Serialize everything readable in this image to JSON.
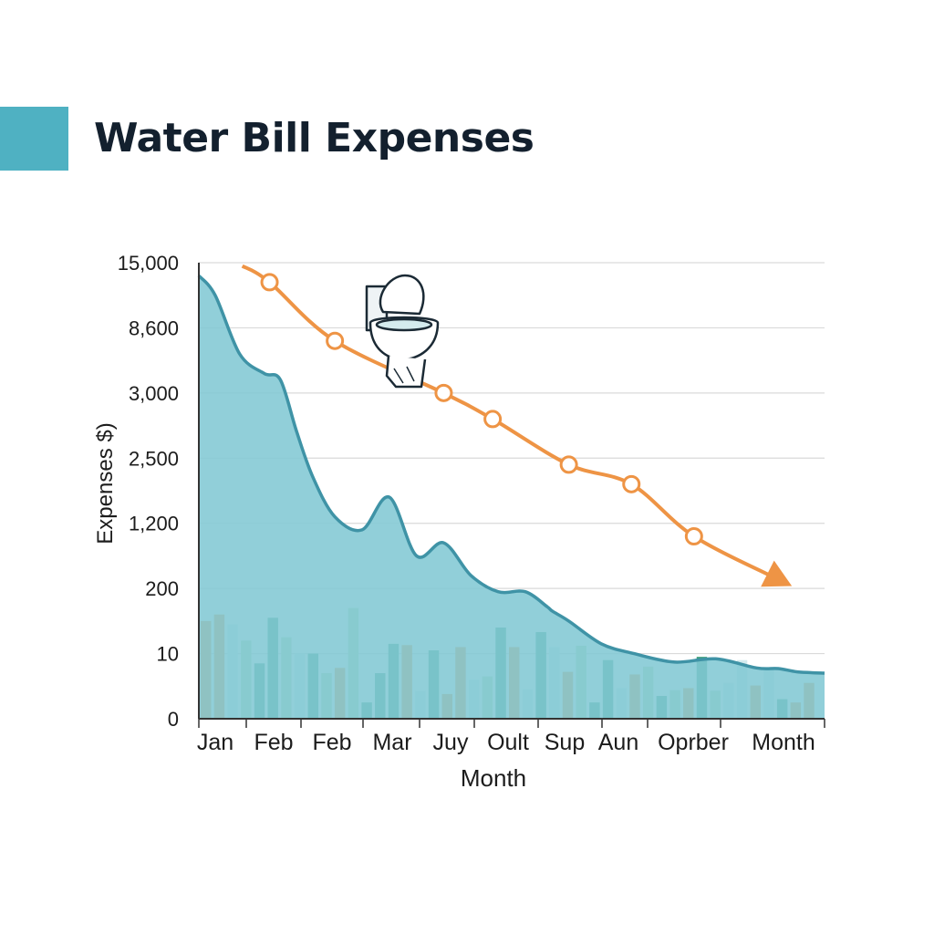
{
  "header": {
    "title": "Water Bill Expenses",
    "accent_color": "#4fb1c2"
  },
  "chart_data": {
    "type": "area",
    "title": "Water Bill Expenses",
    "xlabel": "Month",
    "ylabel": "Expenses $)",
    "y_tick_labels": [
      "0",
      "10",
      "200",
      "1,200",
      "2,500",
      "3,000",
      "8,600",
      "15,000"
    ],
    "x_tick_labels": [
      "Jan",
      "Feb",
      "Feb",
      "Mar",
      "Juy",
      "Oult",
      "Sup",
      "Aun",
      "Oprber",
      "Month"
    ],
    "grid": true,
    "icon": "toilet-icon",
    "colors": {
      "area_fill": "#82c8d4",
      "area_line": "#3f93a6",
      "trend_line": "#ee9445",
      "bar_palette": [
        "#ee9445",
        "#3c9e7a",
        "#b5dcae",
        "#d4ebee"
      ]
    },
    "series": [
      {
        "type": "area",
        "note": "y values in tick-index units (0 = '0' ... 7 = '15,000')",
        "x": [
          0,
          0.6,
          1.5,
          2.4,
          3.0,
          3.6,
          4.2,
          5.0,
          6.0,
          7.0,
          8.0,
          9.0,
          10.0,
          11.0,
          12.0,
          12.8,
          13.0,
          13.6,
          14.8,
          16.0,
          17.5,
          19.0,
          20.5,
          21.3,
          22.0,
          23.0
        ],
        "y": [
          6.8,
          6.5,
          5.6,
          5.3,
          5.2,
          4.4,
          3.7,
          3.1,
          2.9,
          3.4,
          2.5,
          2.7,
          2.2,
          1.95,
          1.95,
          1.72,
          1.65,
          1.5,
          1.15,
          1.0,
          0.87,
          0.92,
          0.78,
          0.77,
          0.72,
          0.7
        ]
      },
      {
        "type": "line",
        "x": [
          1.6,
          2.6,
          5.0,
          9.0,
          10.8,
          13.6,
          15.9,
          18.2,
          21.5
        ],
        "y": [
          6.95,
          6.7,
          5.8,
          5.0,
          4.6,
          3.9,
          3.6,
          2.8,
          2.1
        ],
        "marker_indices": [
          1,
          2,
          3,
          4,
          5,
          6,
          7
        ]
      },
      {
        "type": "bar",
        "values": [
          1.5,
          1.6,
          1.45,
          1.2,
          0.85,
          1.55,
          1.25,
          1.0,
          1.0,
          0.7,
          0.78,
          1.7,
          0.25,
          0.7,
          1.15,
          1.13,
          0.43,
          1.05,
          0.38,
          1.1,
          0.6,
          0.65,
          1.4,
          1.1,
          0.45,
          1.33,
          1.1,
          0.72,
          1.12,
          0.25,
          0.9,
          0.47,
          0.68,
          0.8,
          0.35,
          0.44,
          0.47,
          0.95,
          0.43,
          0.55,
          0.9,
          0.51,
          0.75,
          0.3,
          0.25,
          0.55
        ],
        "colors": [
          0,
          0,
          3,
          2,
          1,
          1,
          2,
          3,
          1,
          2,
          0,
          2,
          1,
          1,
          1,
          0,
          3,
          1,
          0,
          0,
          3,
          2,
          1,
          0,
          3,
          1,
          3,
          0,
          2,
          1,
          1,
          3,
          0,
          2,
          1,
          2,
          0,
          1,
          2,
          3,
          3,
          0,
          3,
          1,
          0,
          0
        ]
      }
    ]
  }
}
